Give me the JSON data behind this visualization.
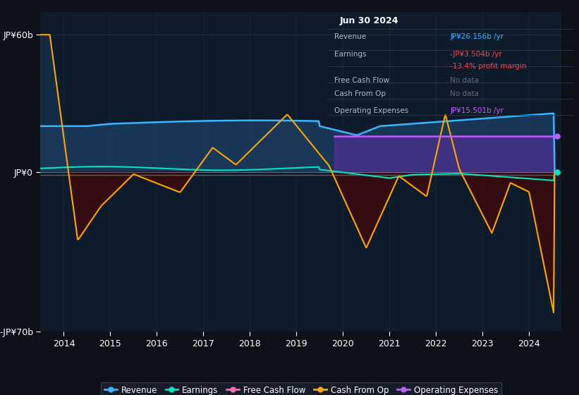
{
  "background_color": "#0d1117",
  "plot_bg_color": "#0d1b2a",
  "xlim": [
    2013.5,
    2024.7
  ],
  "ylim": [
    -70,
    70
  ],
  "yticks": [
    -70,
    0,
    60
  ],
  "ytick_labels": [
    "-JP¥70b",
    "JP¥0",
    "JP¥60b"
  ],
  "xticks": [
    2014,
    2015,
    2016,
    2017,
    2018,
    2019,
    2020,
    2021,
    2022,
    2023,
    2024
  ],
  "revenue_color": "#38b6ff",
  "earnings_color": "#00e5c0",
  "free_cash_flow_color": "#ff69b4",
  "cash_from_op_color": "#ffa500",
  "op_expenses_color": "#bf5fff",
  "fill_color_positive": "#1a3a5c",
  "fill_color_negative": "#3d0a0a",
  "legend_bg": "#1a1f2e",
  "info_box_bg": "#0d1117",
  "info_box_border": "#444466"
}
